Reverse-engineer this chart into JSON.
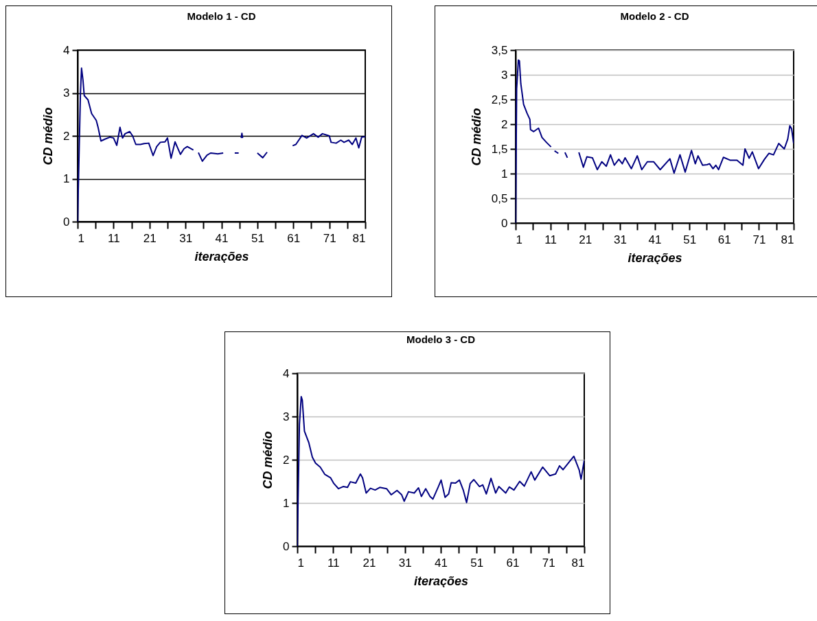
{
  "chart_data": [
    {
      "type": "line",
      "title": "Modelo 1 - CD",
      "xlabel": "iterações",
      "ylabel": "CD médio",
      "grid": "y",
      "xlim": [
        1,
        81
      ],
      "ylim": [
        0,
        4
      ],
      "xticks": [
        1,
        {
          "value": 6,
          "label": null
        },
        11,
        {
          "value": 16,
          "label": null
        },
        21,
        {
          "value": 26,
          "label": null
        },
        31,
        {
          "value": 36,
          "label": null
        },
        41,
        {
          "value": 46,
          "label": null
        },
        51,
        {
          "value": 56,
          "label": null
        },
        61,
        {
          "value": 66,
          "label": null
        },
        71,
        {
          "value": 76,
          "label": null
        },
        81
      ],
      "yticks": [
        0,
        1,
        2,
        3,
        4
      ],
      "x": [
        1,
        1.8,
        2.1,
        2.5,
        2.85,
        3.9,
        4.9,
        6.2,
        6.7,
        7.5,
        8.5,
        10,
        11,
        11.9,
        12.8,
        13.5,
        14.2,
        15.5,
        16.3,
        17.2,
        18.5,
        19.5,
        20.8,
        22,
        23,
        24,
        25.3,
        26,
        27,
        28.1,
        29.6,
        30.6,
        31.5,
        33.2,
        34,
        34.6,
        35.7,
        37,
        38,
        40,
        41.5,
        43,
        44.7,
        45.8,
        46.2,
        46.5,
        46.7,
        46.9,
        48,
        51,
        52.5,
        53.7,
        57,
        60.8,
        61.7,
        63.4,
        64.7,
        66.6,
        67.9,
        69.1,
        71,
        71.5,
        72.9,
        74.2,
        75.1,
        76.4,
        77.4,
        78.4,
        79.2,
        80,
        81
      ],
      "series": [
        {
          "color": "#000080",
          "values": [
            0,
            3.0,
            3.58,
            3.3,
            2.94,
            2.84,
            2.52,
            2.36,
            2.2,
            1.88,
            1.92,
            1.97,
            1.95,
            1.78,
            2.2,
            1.95,
            2.05,
            2.1,
            2.0,
            1.8,
            1.8,
            1.82,
            1.83,
            1.54,
            1.75,
            1.85,
            1.86,
            1.95,
            1.48,
            1.86,
            1.57,
            1.7,
            1.75,
            1.67,
            null,
            1.61,
            1.41,
            1.55,
            1.6,
            1.58,
            1.6,
            null,
            1.6,
            1.6,
            null,
            1.95,
            2.06,
            1.95,
            null,
            1.6,
            1.49,
            1.62,
            null,
            1.77,
            1.8,
            2.01,
            1.95,
            2.05,
            1.97,
            2.05,
            2.0,
            1.85,
            1.83,
            1.9,
            1.85,
            1.9,
            1.8,
            1.95,
            1.72,
            1.97,
            1.98
          ]
        }
      ]
    },
    {
      "type": "line",
      "title": "Modelo 2 - CD",
      "xlabel": "iterações",
      "ylabel": "CD médio",
      "grid": "y",
      "xlim": [
        1,
        81
      ],
      "ylim": [
        0,
        3.5
      ],
      "xticks": [
        1,
        {
          "value": 6,
          "label": null
        },
        11,
        {
          "value": 16,
          "label": null
        },
        21,
        {
          "value": 26,
          "label": null
        },
        31,
        {
          "value": 36,
          "label": null
        },
        41,
        {
          "value": 46,
          "label": null
        },
        51,
        {
          "value": 56,
          "label": null
        },
        61,
        {
          "value": 66,
          "label": null
        },
        71,
        {
          "value": 76,
          "label": null
        },
        81
      ],
      "yticks": [
        0,
        {
          "value": 0.5,
          "label": "0,5"
        },
        1,
        {
          "value": 1.5,
          "label": "1,5"
        },
        2,
        {
          "value": 2.5,
          "label": "2,5"
        },
        3,
        {
          "value": 3.5,
          "label": "3,5"
        }
      ],
      "x": [
        1,
        1.3,
        1.8,
        2.1,
        2.5,
        3.3,
        4.3,
        5.1,
        5.3,
        6.2,
        7.6,
        8.6,
        9.9,
        11.2,
        12,
        12.2,
        13.3,
        14,
        15.2,
        15.9,
        17,
        19.2,
        20.5,
        21.5,
        23.1,
        24.5,
        25.8,
        27.1,
        28.3,
        29.4,
        30.7,
        31.7,
        32.5,
        34.3,
        36,
        37.3,
        38.9,
        40.7,
        42.6,
        45.4,
        46.6,
        48.3,
        49.8,
        51.6,
        52.7,
        53.5,
        54.8,
        56.1,
        56.8,
        57.8,
        58.6,
        59.4,
        60.8,
        62.8,
        64.7,
        66.4,
        67,
        68.2,
        69.1,
        70.9,
        72.6,
        73.9,
        75.2,
        76.7,
        78.3,
        79.3,
        79.9,
        80.4,
        81
      ],
      "series": [
        {
          "color": "#000080",
          "values": [
            0,
            2.72,
            3.3,
            3.28,
            2.82,
            2.4,
            2.22,
            2.1,
            1.89,
            1.85,
            1.92,
            1.73,
            1.63,
            1.54,
            null,
            1.46,
            1.41,
            null,
            1.43,
            1.32,
            null,
            1.43,
            1.13,
            1.34,
            1.32,
            1.08,
            1.24,
            1.15,
            1.38,
            1.17,
            1.29,
            1.2,
            1.32,
            1.1,
            1.36,
            1.08,
            1.24,
            1.24,
            1.08,
            1.3,
            1.01,
            1.38,
            1.03,
            1.47,
            1.2,
            1.36,
            1.17,
            1.18,
            1.2,
            1.1,
            1.17,
            1.08,
            1.33,
            1.27,
            1.27,
            1.17,
            1.5,
            1.31,
            1.44,
            1.1,
            1.29,
            1.41,
            1.38,
            1.61,
            1.5,
            1.7,
            1.97,
            1.91,
            1.61
          ]
        }
      ]
    },
    {
      "type": "line",
      "title": "Modelo 3 - CD",
      "xlabel": "iterações",
      "ylabel": "CD médio",
      "grid": "y",
      "xlim": [
        1,
        81
      ],
      "ylim": [
        0,
        4
      ],
      "xticks": [
        1,
        {
          "value": 6,
          "label": null
        },
        11,
        {
          "value": 16,
          "label": null
        },
        21,
        {
          "value": 26,
          "label": null
        },
        31,
        {
          "value": 36,
          "label": null
        },
        41,
        {
          "value": 46,
          "label": null
        },
        51,
        {
          "value": 56,
          "label": null
        },
        61,
        {
          "value": 66,
          "label": null
        },
        71,
        {
          "value": 76,
          "label": null
        },
        81
      ],
      "yticks": [
        0,
        1,
        2,
        3,
        4
      ],
      "x": [
        1,
        1.6,
        2.1,
        2.4,
        3,
        4.2,
        5.2,
        6.1,
        7.4,
        8.7,
        10.3,
        11.2,
        12.5,
        13.8,
        15,
        15.8,
        17.3,
        18.6,
        19.2,
        20.2,
        21.4,
        22.7,
        24,
        25.9,
        27.2,
        28.8,
        30.1,
        30.8,
        32,
        33.6,
        34.8,
        35.6,
        36.8,
        38,
        38.8,
        40.3,
        41.1,
        42.2,
        43.2,
        43.9,
        45.1,
        46.2,
        47.3,
        48.2,
        49.2,
        50.2,
        51.8,
        52.7,
        53.7,
        55,
        56.3,
        57.2,
        59.1,
        60.1,
        61.4,
        63,
        64.3,
        66.2,
        67.2,
        69.4,
        71.4,
        73,
        74.1,
        75.1,
        77.2,
        78.1,
        79.6,
        80.1,
        81
      ],
      "series": [
        {
          "color": "#000080",
          "values": [
            0,
            2.82,
            3.46,
            3.38,
            2.66,
            2.4,
            2.06,
            1.92,
            1.83,
            1.66,
            1.58,
            1.45,
            1.33,
            1.38,
            1.36,
            1.49,
            1.46,
            1.67,
            1.58,
            1.23,
            1.34,
            1.3,
            1.36,
            1.33,
            1.19,
            1.29,
            1.19,
            1.04,
            1.26,
            1.23,
            1.35,
            1.15,
            1.33,
            1.15,
            1.09,
            1.37,
            1.53,
            1.13,
            1.21,
            1.47,
            1.46,
            1.53,
            1.29,
            1.01,
            1.45,
            1.54,
            1.38,
            1.42,
            1.21,
            1.57,
            1.23,
            1.38,
            1.23,
            1.37,
            1.3,
            1.5,
            1.39,
            1.72,
            1.53,
            1.83,
            1.63,
            1.67,
            1.86,
            1.77,
            1.99,
            2.08,
            1.76,
            1.55,
            1.99
          ]
        }
      ]
    }
  ]
}
